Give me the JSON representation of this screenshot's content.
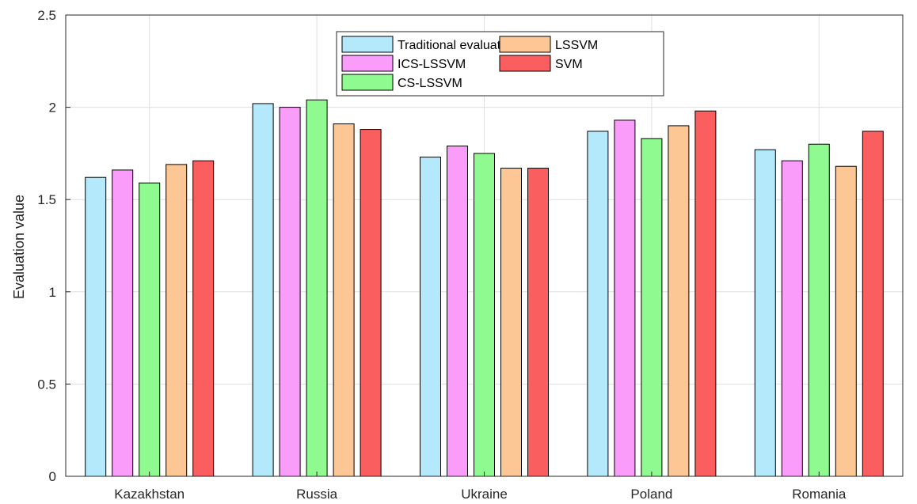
{
  "chart_data": {
    "type": "bar",
    "title": "",
    "xlabel": "",
    "ylabel": "Evaluation value",
    "ylim": [
      0,
      2.5
    ],
    "yticks": [
      "0",
      "0.5",
      "1",
      "1.5",
      "2",
      "2.5"
    ],
    "categories": [
      "Kazakhstan",
      "Russia",
      "Ukraine",
      "Poland",
      "Romania"
    ],
    "grid": true,
    "legend_position": "top-center",
    "series": [
      {
        "name": "Traditional evaluation",
        "color": "#b3e9fa",
        "values": [
          1.62,
          2.02,
          1.73,
          1.87,
          1.77
        ]
      },
      {
        "name": "ICS-LSSVM",
        "color": "#fa9cfa",
        "values": [
          1.66,
          2.0,
          1.79,
          1.93,
          1.71
        ]
      },
      {
        "name": "CS-LSSVM",
        "color": "#8ffa8f",
        "values": [
          1.59,
          2.04,
          1.75,
          1.83,
          1.8
        ]
      },
      {
        "name": "LSSVM",
        "color": "#fcc794",
        "values": [
          1.69,
          1.91,
          1.67,
          1.9,
          1.68
        ]
      },
      {
        "name": "SVM",
        "color": "#fa5e5e",
        "values": [
          1.71,
          1.88,
          1.67,
          1.98,
          1.87
        ]
      }
    ]
  }
}
